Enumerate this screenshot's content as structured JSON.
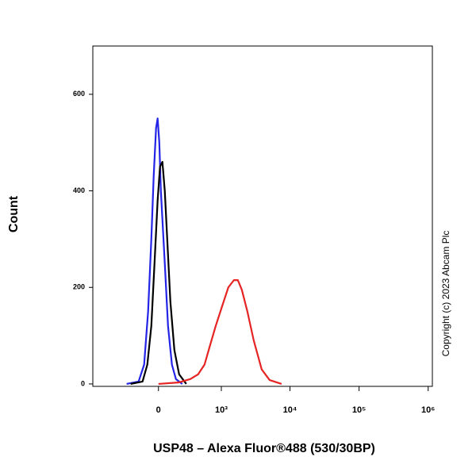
{
  "chart_data": {
    "type": "line",
    "x_label": "USP48 – Alexa Fluor®488 (530/30BP)",
    "y_label": "Count",
    "annotation": "Copyright (c) 2023 Abcam Plc",
    "xscale": "biexponential",
    "xlim": [
      -1100,
      1150000
    ],
    "xticks": [
      0,
      {
        "value": 1000,
        "label": "10³"
      },
      {
        "value": 10000,
        "label": "10⁴"
      },
      {
        "value": 100000,
        "label": "10⁵"
      },
      {
        "value": 1000000,
        "label": "10⁶"
      }
    ],
    "ylim": [
      -5,
      700
    ],
    "yticks": [
      0,
      200,
      400,
      600
    ],
    "grid": false,
    "series": [
      {
        "color": "#2424e6",
        "x": [
          -318,
          -178,
          -124,
          -88,
          -60,
          -40,
          -20,
          -7,
          7,
          20,
          53,
          81,
          116,
          154,
          220
        ],
        "values": [
          0,
          5,
          40,
          150,
          300,
          430,
          530,
          550,
          500,
          400,
          250,
          120,
          40,
          10,
          0
        ]
      },
      {
        "color": "#000000",
        "x": [
          -266,
          -139,
          -95,
          -60,
          -33,
          -7,
          13,
          33,
          53,
          74,
          102,
          139,
          186,
          266
        ],
        "values": [
          0,
          5,
          40,
          120,
          250,
          380,
          450,
          460,
          400,
          300,
          170,
          70,
          20,
          0
        ]
      },
      {
        "color": "#e62424",
        "x": [
          0,
          178,
          318,
          436,
          553,
          675,
          823,
          1022,
          1270,
          1533,
          1753,
          2003,
          2413,
          2985,
          3895,
          5073,
          7550
        ],
        "values": [
          0,
          3,
          10,
          20,
          40,
          80,
          120,
          160,
          200,
          215,
          215,
          195,
          150,
          90,
          30,
          8,
          0
        ]
      }
    ]
  }
}
